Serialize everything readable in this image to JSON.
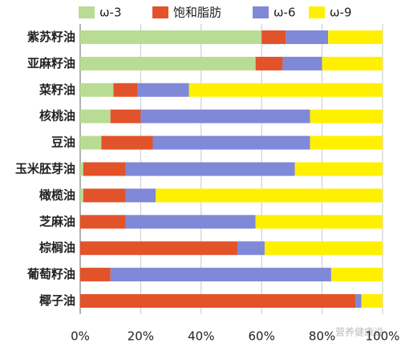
{
  "chart_data": {
    "type": "stacked_barh",
    "categories": [
      "紫苏籽油",
      "亚麻籽油",
      "菜籽油",
      "核桃油",
      "豆油",
      "玉米胚芽油",
      "橄榄油",
      "芝麻油",
      "棕榈油",
      "葡萄籽油",
      "椰子油"
    ],
    "series": [
      {
        "name": "ω-3",
        "color": "#b9dc95",
        "values": [
          60,
          58,
          11,
          10,
          7,
          1,
          1,
          0,
          0,
          0,
          0
        ]
      },
      {
        "name": "饱和脂肪",
        "color": "#e2532a",
        "values": [
          8,
          9,
          8,
          10,
          17,
          14,
          14,
          15,
          52,
          10,
          91
        ]
      },
      {
        "name": "ω-6",
        "color": "#8088d8",
        "values": [
          14,
          13,
          17,
          56,
          52,
          56,
          10,
          43,
          9,
          73,
          2
        ]
      },
      {
        "name": "ω-9",
        "color": "#fff000",
        "values": [
          18,
          20,
          64,
          24,
          24,
          29,
          75,
          42,
          39,
          17,
          7
        ]
      }
    ],
    "xlim": [
      0,
      100
    ],
    "xticks": [
      {
        "value": 0,
        "label": "0%"
      },
      {
        "value": 20,
        "label": "20%"
      },
      {
        "value": 40,
        "label": "40%"
      },
      {
        "value": 60,
        "label": "60%"
      },
      {
        "value": 80,
        "label": "80%"
      },
      {
        "value": 100,
        "label": "100%"
      }
    ],
    "grid": true,
    "watermark": "营养健康说"
  }
}
